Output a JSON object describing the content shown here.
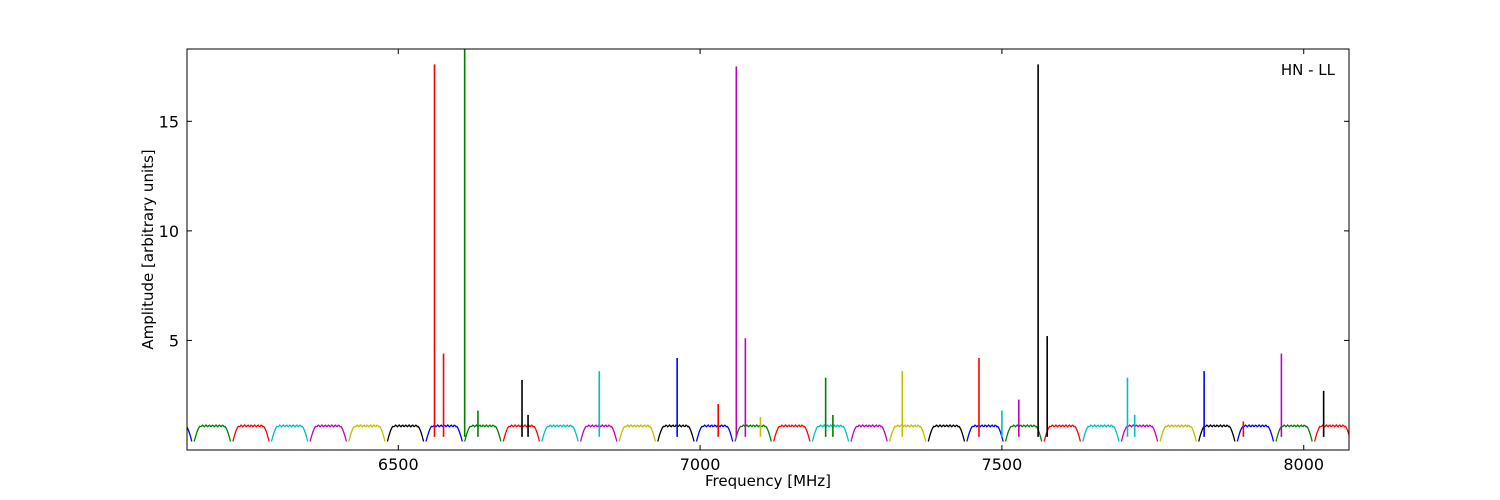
{
  "chart_data": {
    "type": "line",
    "title": "",
    "xlabel": "Frequency [MHz]",
    "ylabel": "Amplitude [arbitrary units]",
    "annotation": "HN - LL",
    "xlim": [
      6150,
      8075
    ],
    "ylim": [
      0,
      18.3
    ],
    "xticks": [
      6500,
      7000,
      7500,
      8000
    ],
    "yticks": [
      5,
      10,
      15
    ],
    "grid": false,
    "legend": "none",
    "band_width_mhz": 64,
    "band_start_mhz": 6160,
    "band_level": 1.1,
    "band_edge_level": 0.15,
    "color_cycle": [
      "#0000ff",
      "#008000",
      "#ff0000",
      "#00bfbf",
      "#bf00bf",
      "#bfbf00",
      "#000000"
    ],
    "spikes": [
      {
        "x": 6560,
        "y": 17.6,
        "color": "#ff0000"
      },
      {
        "x": 6575,
        "y": 4.4,
        "color": "#ff0000"
      },
      {
        "x": 6610,
        "y": 18.3,
        "color": "#008000"
      },
      {
        "x": 6632,
        "y": 1.8,
        "color": "#008000"
      },
      {
        "x": 6705,
        "y": 3.2,
        "color": "#000000"
      },
      {
        "x": 6715,
        "y": 1.6,
        "color": "#000000"
      },
      {
        "x": 6833,
        "y": 3.6,
        "color": "#00bfbf"
      },
      {
        "x": 6962,
        "y": 4.2,
        "color": "#0000ff"
      },
      {
        "x": 7030,
        "y": 2.1,
        "color": "#ff0000"
      },
      {
        "x": 7060,
        "y": 17.5,
        "color": "#bf00bf"
      },
      {
        "x": 7075,
        "y": 5.1,
        "color": "#bf00bf"
      },
      {
        "x": 7100,
        "y": 1.5,
        "color": "#bfbf00"
      },
      {
        "x": 7208,
        "y": 3.3,
        "color": "#008000"
      },
      {
        "x": 7220,
        "y": 1.6,
        "color": "#008000"
      },
      {
        "x": 7335,
        "y": 3.6,
        "color": "#bfbf00"
      },
      {
        "x": 7462,
        "y": 4.2,
        "color": "#ff0000"
      },
      {
        "x": 7500,
        "y": 1.8,
        "color": "#00bfbf"
      },
      {
        "x": 7528,
        "y": 2.3,
        "color": "#bf00bf"
      },
      {
        "x": 7560,
        "y": 17.6,
        "color": "#000000"
      },
      {
        "x": 7575,
        "y": 5.2,
        "color": "#000000"
      },
      {
        "x": 7708,
        "y": 3.3,
        "color": "#00bfbf"
      },
      {
        "x": 7720,
        "y": 1.6,
        "color": "#00bfbf"
      },
      {
        "x": 7835,
        "y": 3.6,
        "color": "#0000ff"
      },
      {
        "x": 7900,
        "y": 1.3,
        "color": "#ff0000"
      },
      {
        "x": 7963,
        "y": 4.4,
        "color": "#bf00bf"
      },
      {
        "x": 8033,
        "y": 2.7,
        "color": "#000000"
      }
    ]
  }
}
